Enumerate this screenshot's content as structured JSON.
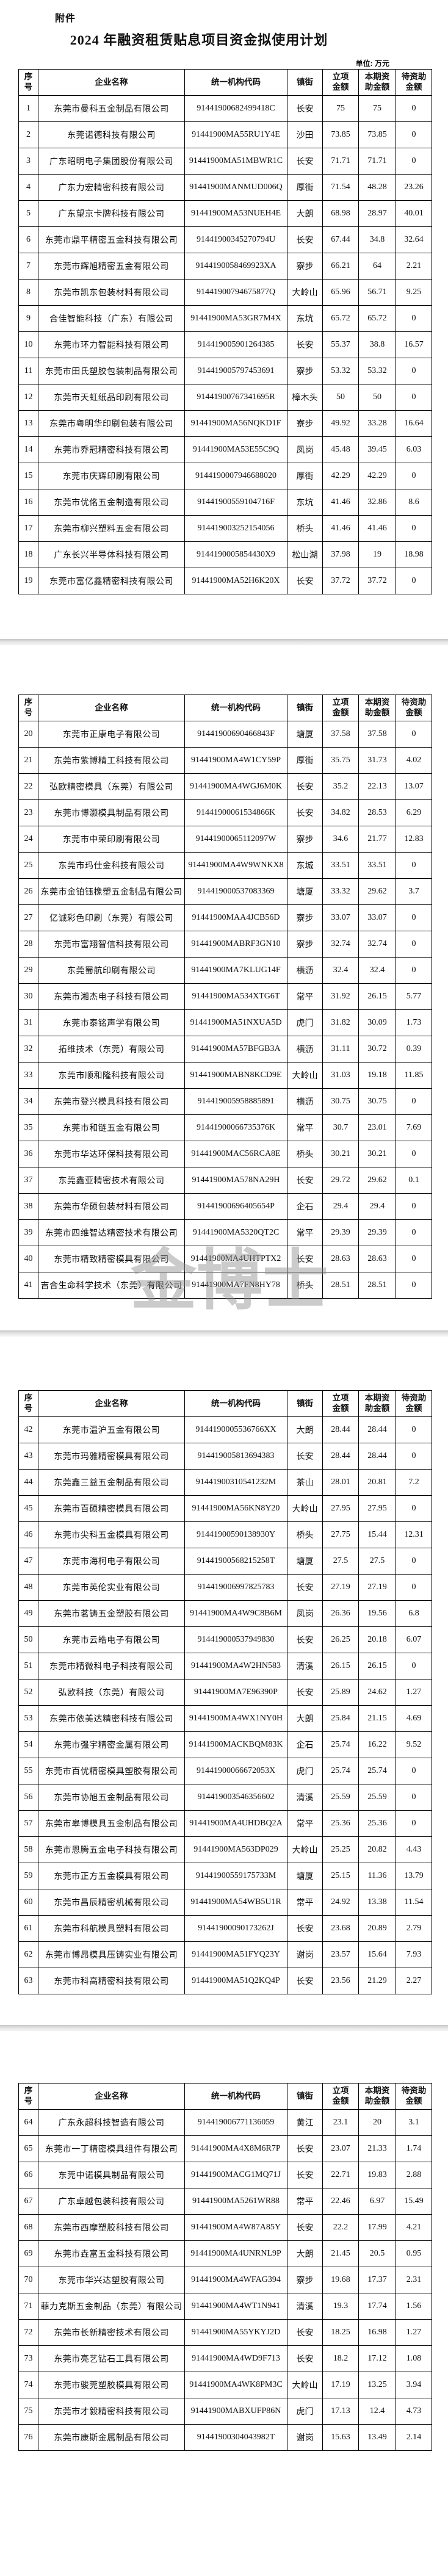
{
  "document": {
    "attachment_label": "附件",
    "title": "2024 年融资租赁贴息项目资金拟使用计划",
    "unit_label": "单位: 万元",
    "watermark": "金博士"
  },
  "table": {
    "columns": [
      "序\n号",
      "企业名称",
      "统一机构代码",
      "镇街",
      "立项\n金额",
      "本期资\n助金额",
      "待资助\n金额"
    ]
  },
  "pages": [
    {
      "rows": [
        [
          "1",
          "东莞市曼科五金制品有限公司",
          "91441900682499418C",
          "长安",
          "75",
          "75",
          "0"
        ],
        [
          "2",
          "东莞诺德科技有限公司",
          "91441900MA55RU1Y4E",
          "沙田",
          "73.85",
          "73.85",
          "0"
        ],
        [
          "3",
          "广东昭明电子集团股份有限公司",
          "91441900MA51MBWR1C",
          "长安",
          "71.71",
          "71.71",
          "0"
        ],
        [
          "4",
          "广东力宏精密科技有限公司",
          "91441900MANMUD006Q",
          "厚街",
          "71.54",
          "48.28",
          "23.26"
        ],
        [
          "5",
          "广东望京卡牌科技有限公司",
          "91441900MA53NUEH4E",
          "大朗",
          "68.98",
          "28.97",
          "40.01"
        ],
        [
          "6",
          "东莞市鼎平精密五金科技有限公司",
          "91441900345270794U",
          "长安",
          "67.44",
          "34.8",
          "32.64"
        ],
        [
          "7",
          "东莞市辉旭精密五金有限公司",
          "9144190058469923XA",
          "寮步",
          "66.21",
          "64",
          "2.21"
        ],
        [
          "8",
          "东莞市凯东包装材料有限公司",
          "91441900794675877Q",
          "大岭山",
          "65.96",
          "56.71",
          "9.25"
        ],
        [
          "9",
          "合佳智能科技（广东）有限公司",
          "91441900MA53GR7M4X",
          "东坑",
          "65.72",
          "65.72",
          "0"
        ],
        [
          "10",
          "东莞市环力智能科技有限公司",
          "914419005901264385",
          "长安",
          "55.37",
          "38.8",
          "16.57"
        ],
        [
          "11",
          "东莞市田氏塑胶包装制品有限公司",
          "914419005797453691",
          "寮步",
          "53.32",
          "53.32",
          "0"
        ],
        [
          "12",
          "东莞市天虹纸品印刷有限公司",
          "91441900767341695R",
          "樟木头",
          "50",
          "50",
          "0"
        ],
        [
          "13",
          "东莞市粤明华印刷包装有限公司",
          "91441900MA56NQKD1F",
          "寮步",
          "49.92",
          "33.28",
          "16.64"
        ],
        [
          "14",
          "东莞市乔冠精密科技有限公司",
          "91441900MA53E55C9Q",
          "凤岗",
          "45.48",
          "39.45",
          "6.03"
        ],
        [
          "15",
          "东莞市庆辉印刷有限公司",
          "9144190007946688020",
          "厚街",
          "42.29",
          "42.29",
          "0"
        ],
        [
          "16",
          "东莞市优佲五金制造有限公司",
          "91441900559104716F",
          "东坑",
          "41.46",
          "32.86",
          "8.6"
        ],
        [
          "17",
          "东莞市柳兴塑料五金有限公司",
          "914419003252154056",
          "桥头",
          "41.46",
          "41.46",
          "0"
        ],
        [
          "18",
          "广东长兴半导体科技有限公司",
          "9144190005854430X9",
          "松山湖",
          "37.98",
          "19",
          "18.98"
        ],
        [
          "19",
          "东莞市富亿鑫精密科技有限公司",
          "91441900MA52H6K20X",
          "长安",
          "37.72",
          "37.72",
          "0"
        ]
      ]
    },
    {
      "rows": [
        [
          "20",
          "东莞市正康电子有限公司",
          "91441900690466843F",
          "塘厦",
          "37.58",
          "37.58",
          "0"
        ],
        [
          "21",
          "东莞市紫博精工科技有限公司",
          "91441900MA4W1CY59P",
          "厚街",
          "35.75",
          "31.73",
          "4.02"
        ],
        [
          "22",
          "弘欧精密模具（东莞）有限公司",
          "91441900MA4WGJ6M0K",
          "长安",
          "35.2",
          "22.13",
          "13.07"
        ],
        [
          "23",
          "东莞市博灏模具制品有限公司",
          "91441900061534866K",
          "长安",
          "34.82",
          "28.53",
          "6.29"
        ],
        [
          "24",
          "东莞市中荣印刷有限公司",
          "91441900065112097W",
          "寮步",
          "34.6",
          "21.77",
          "12.83"
        ],
        [
          "25",
          "东莞市玛仕金科技有限公司",
          "91441900MA4W9WNKX8",
          "东城",
          "33.51",
          "33.51",
          "0"
        ],
        [
          "26",
          "东莞市金铂钰橡塑五金制品有限公司",
          "914419000537083369",
          "塘厦",
          "33.32",
          "29.62",
          "3.7"
        ],
        [
          "27",
          "亿诚彩色印刷（东莞）有限公司",
          "91441900MAA4JCB56D",
          "寮步",
          "33.07",
          "33.07",
          "0"
        ],
        [
          "28",
          "东莞市富翔智信科技有限公司",
          "91441900MABRF3GN10",
          "寮步",
          "32.74",
          "32.74",
          "0"
        ],
        [
          "29",
          "东莞蜀航印刷有限公司",
          "91441900MA7KLUG14F",
          "横沥",
          "32.4",
          "32.4",
          "0"
        ],
        [
          "30",
          "东莞市湘杰电子科技有限公司",
          "91441900MA534XTG6T",
          "常平",
          "31.92",
          "26.15",
          "5.77"
        ],
        [
          "31",
          "东莞市泰铭声学有限公司",
          "91441900MA51NXUA5D",
          "虎门",
          "31.82",
          "30.09",
          "1.73"
        ],
        [
          "32",
          "拓维技术（东莞）有限公司",
          "91441900MA57BFGB3A",
          "横沥",
          "31.11",
          "30.72",
          "0.39"
        ],
        [
          "33",
          "东莞市顺和隆科技有限公司",
          "91441900MABN8KCD9E",
          "大岭山",
          "31.03",
          "19.18",
          "11.85"
        ],
        [
          "34",
          "东莞市登兴模具科技有限公司",
          "914419005958885891",
          "横沥",
          "30.75",
          "30.75",
          "0"
        ],
        [
          "35",
          "东莞市和链五金有限公司",
          "91441900066735376K",
          "常平",
          "30.7",
          "23.01",
          "7.69"
        ],
        [
          "36",
          "东莞市华达环保科技有限公司",
          "91441900MAC56RCA8E",
          "桥头",
          "30.21",
          "30.21",
          "0"
        ],
        [
          "37",
          "东莞鑫亚精密技术有限公司",
          "91441900MA578NA29H",
          "长安",
          "29.72",
          "29.62",
          "0.1"
        ],
        [
          "38",
          "东莞市华硕包装材料有限公司",
          "91441900696405654P",
          "企石",
          "29.4",
          "29.4",
          "0"
        ],
        [
          "39",
          "东莞市四维智达精密技术有限公司",
          "91441900MA5320QT2C",
          "常平",
          "29.39",
          "29.39",
          "0"
        ],
        [
          "40",
          "东莞市精致精密模具有限公司",
          "91441900MA4UHTPTX2",
          "长安",
          "28.63",
          "28.63",
          "0"
        ],
        [
          "41",
          "吉合生命科学技术（东莞）有限公司",
          "91441900MA7FN8HY78",
          "桥头",
          "28.51",
          "28.51",
          "0"
        ]
      ]
    },
    {
      "rows": [
        [
          "42",
          "东莞市温沪五金有限公司",
          "9144190005536766XX",
          "大朗",
          "28.44",
          "28.44",
          "0"
        ],
        [
          "43",
          "东莞市玛雅精密模具有限公司",
          "914419005813694383",
          "长安",
          "28.44",
          "28.44",
          "0"
        ],
        [
          "44",
          "东莞鑫三益五金制品有限公司",
          "91441900310541232M",
          "茶山",
          "28.01",
          "20.81",
          "7.2"
        ],
        [
          "45",
          "东莞市百硕精密模具有限公司",
          "91441900MA56KN8Y20",
          "大岭山",
          "27.95",
          "27.95",
          "0"
        ],
        [
          "46",
          "东莞市尖科五金模具有限公司",
          "91441900590138930Y",
          "桥头",
          "27.75",
          "15.44",
          "12.31"
        ],
        [
          "47",
          "东莞市海柯电子有限公司",
          "91441900568215258T",
          "塘厦",
          "27.5",
          "27.5",
          "0"
        ],
        [
          "48",
          "东莞市英伦实业有限公司",
          "914419006997825783",
          "长安",
          "27.19",
          "27.19",
          "0"
        ],
        [
          "49",
          "东莞市茗铸五金塑胶有限公司",
          "91441900MA4W9C8B6M",
          "凤岗",
          "26.36",
          "19.56",
          "6.8"
        ],
        [
          "50",
          "东莞市云皓电子有限公司",
          "914419000537949830",
          "长安",
          "26.25",
          "20.18",
          "6.07"
        ],
        [
          "51",
          "东莞市精微科电子科技有限公司",
          "91441900MA4W2HN583",
          "清溪",
          "26.15",
          "26.15",
          "0"
        ],
        [
          "52",
          "弘欧科技（东莞）有限公司",
          "91441900MA7E96390P",
          "长安",
          "25.89",
          "24.62",
          "1.27"
        ],
        [
          "53",
          "东莞市依美达精密科技有限公司",
          "91441900MA4WX1NY0H",
          "大朗",
          "25.84",
          "21.15",
          "4.69"
        ],
        [
          "54",
          "东莞市强宇精密金属有限公司",
          "91441900MACKBQM83K",
          "企石",
          "25.74",
          "16.22",
          "9.52"
        ],
        [
          "55",
          "东莞市百优精密模具塑胶有限公司",
          "91441900066672053X",
          "虎门",
          "25.74",
          "25.74",
          "0"
        ],
        [
          "56",
          "东莞市协旭五金制品有限公司",
          "914419003546356602",
          "清溪",
          "25.59",
          "25.59",
          "0"
        ],
        [
          "57",
          "东莞市皋博模具五金制品有限公司",
          "91441900MA4UHDBQ2A",
          "常平",
          "25.36",
          "25.36",
          "0"
        ],
        [
          "58",
          "东莞市恩腾五金电子科技有限公司",
          "91441900MA563DP029",
          "大岭山",
          "25.25",
          "20.82",
          "4.43"
        ],
        [
          "59",
          "东莞市正方五金模具有限公司",
          "91441900559175733M",
          "塘厦",
          "25.15",
          "11.36",
          "13.79"
        ],
        [
          "60",
          "东莞市昌辰精密机械有限公司",
          "91441900MA54WB5U1R",
          "常平",
          "24.92",
          "13.38",
          "11.54"
        ],
        [
          "61",
          "东莞市科航模具塑料有限公司",
          "91441900090173262J",
          "长安",
          "23.68",
          "20.89",
          "2.79"
        ],
        [
          "62",
          "东莞市博昂模具压铸实业有限公司",
          "91441900MA51FYQ23Y",
          "谢岗",
          "23.57",
          "15.64",
          "7.93"
        ],
        [
          "63",
          "东莞市科高精密科技有限公司",
          "91441900MA51Q2KQ4P",
          "长安",
          "23.56",
          "21.29",
          "2.27"
        ]
      ]
    },
    {
      "rows": [
        [
          "64",
          "广东永超科技智造有限公司",
          "914419006771136059",
          "黄江",
          "23.1",
          "20",
          "3.1"
        ],
        [
          "65",
          "东莞市一丁精密模具组件有限公司",
          "91441900MA4X8M6R7P",
          "长安",
          "23.07",
          "21.33",
          "1.74"
        ],
        [
          "66",
          "东莞中诺模具制品有限公司",
          "91441900MACG1MQ71J",
          "长安",
          "22.71",
          "19.83",
          "2.88"
        ],
        [
          "67",
          "广东卓越包装科技有限公司",
          "91441900MA5261WR88",
          "常平",
          "22.46",
          "6.97",
          "15.49"
        ],
        [
          "68",
          "东莞市西摩塑胶科技有限公司",
          "91441900MA4W87A85Y",
          "长安",
          "22.2",
          "17.99",
          "4.21"
        ],
        [
          "69",
          "东莞市垚富五金科技有限公司",
          "91441900MA4UNRNL9P",
          "大朗",
          "21.45",
          "20.5",
          "0.95"
        ],
        [
          "70",
          "东莞市华兴达塑胶有限公司",
          "91441900MA4WFAG394",
          "寮步",
          "19.68",
          "17.37",
          "2.31"
        ],
        [
          "71",
          "菲力克斯五金制品（东莞）有限公司",
          "91441900MA4WT1N941",
          "清溪",
          "19.3",
          "17.74",
          "1.56"
        ],
        [
          "72",
          "东莞市长新精密技术有限公司",
          "91441900MA55YKYJ2D",
          "长安",
          "18.25",
          "16.98",
          "1.27"
        ],
        [
          "73",
          "东莞市亮艺钻石工具有限公司",
          "91441900MA4WD9F713",
          "长安",
          "18.2",
          "17.12",
          "1.08"
        ],
        [
          "74",
          "东莞市骏莞塑胶模具有限公司",
          "91441900MA4WK8PM3C",
          "大岭山",
          "17.19",
          "13.25",
          "3.94"
        ],
        [
          "75",
          "东莞市才毅精密科技有限公司",
          "91441900MABXUFP86N",
          "虎门",
          "17.13",
          "12.4",
          "4.73"
        ],
        [
          "76",
          "东莞市康斯金属制品有限公司",
          "91441900304043982T",
          "谢岗",
          "15.63",
          "13.49",
          "2.14"
        ]
      ]
    }
  ]
}
